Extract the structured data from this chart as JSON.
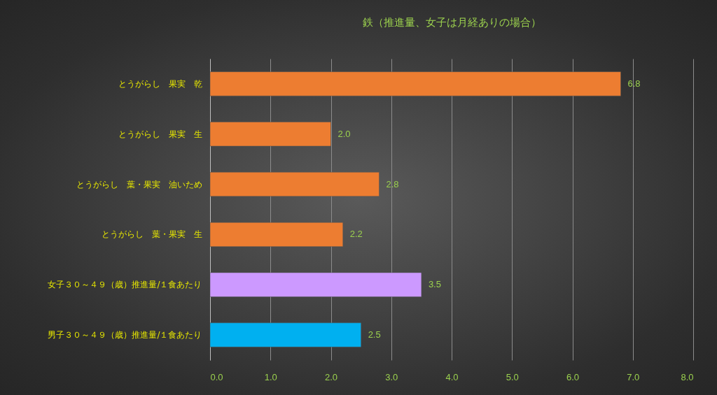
{
  "chart_data": {
    "type": "bar",
    "orientation": "horizontal",
    "title": "鉄（推進量、女子は月経ありの場合）",
    "categories": [
      "とうがらし　果実　乾",
      "とうがらし　果実　生",
      "とうがらし　葉・果実　油いため",
      "とうがらし　葉・果実　生",
      "女子３０～４９（歳）推進量/１食あたり",
      "男子３０～４９（歳）推進量/１食あたり"
    ],
    "values": [
      6.8,
      2.0,
      2.8,
      2.2,
      3.5,
      2.5
    ],
    "colors": [
      "#ed7d31",
      "#ed7d31",
      "#ed7d31",
      "#ed7d31",
      "#cc99ff",
      "#00b0f0"
    ],
    "value_labels": [
      "6.8",
      "2.0",
      "2.8",
      "2.2",
      "3.5",
      "2.5"
    ],
    "xlim": [
      0,
      8
    ],
    "xticks": [
      {
        "value": 0,
        "label": "0.0"
      },
      {
        "value": 1,
        "label": "1.0"
      },
      {
        "value": 2,
        "label": "2.0"
      },
      {
        "value": 3,
        "label": "3.0"
      },
      {
        "value": 4,
        "label": "4.0"
      },
      {
        "value": 5,
        "label": "5.0"
      },
      {
        "value": 6,
        "label": "6.0"
      },
      {
        "value": 7,
        "label": "7.0"
      },
      {
        "value": 8,
        "label": "8.0"
      }
    ],
    "grid": "x",
    "legend": false
  }
}
